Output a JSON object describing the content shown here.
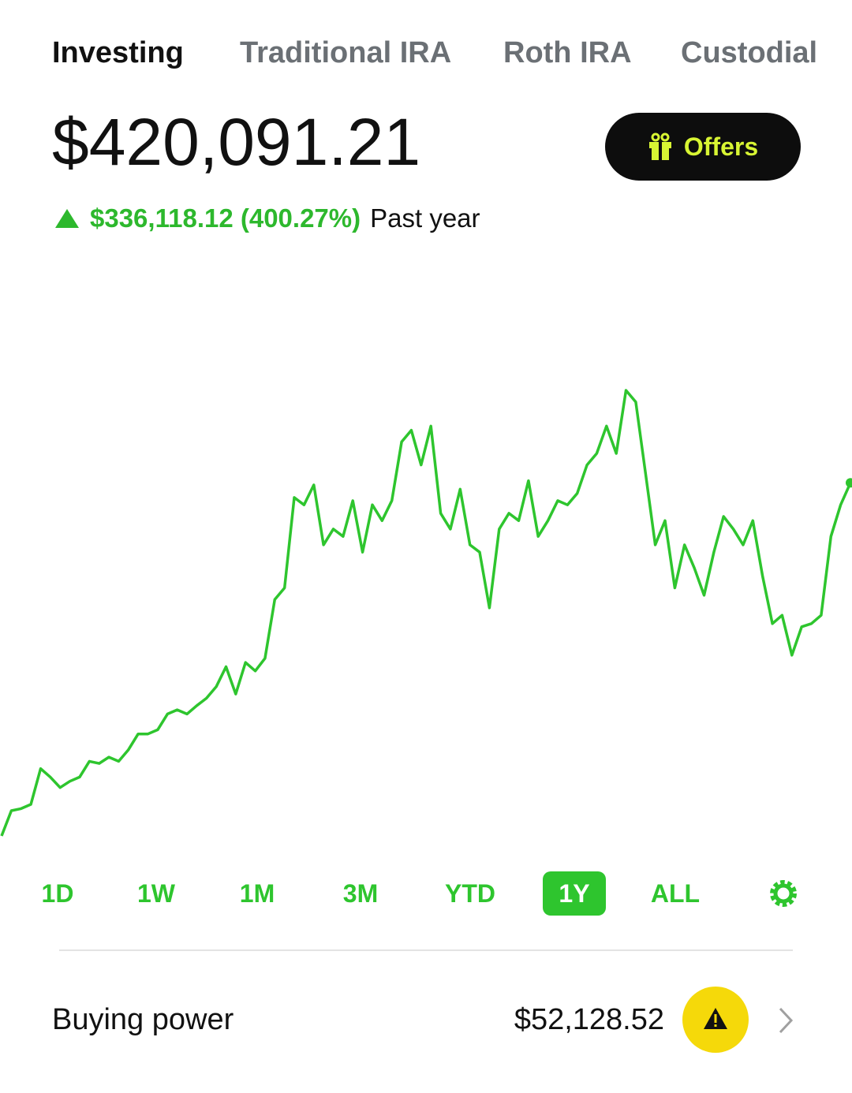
{
  "tabs": [
    "Investing",
    "Traditional IRA",
    "Roth IRA",
    "Custodial"
  ],
  "active_tab": 0,
  "balance": "$420,091.21",
  "offers": "Offers",
  "change": {
    "amount": "$336,118.12 (400.27%)",
    "period": "Past year"
  },
  "chart_data": {
    "type": "line",
    "color": "#2ec52e",
    "values": [
      84000,
      108000,
      110000,
      114000,
      148000,
      140000,
      130000,
      136000,
      140000,
      155000,
      153000,
      159000,
      155000,
      166000,
      181000,
      181000,
      185000,
      200000,
      204000,
      200000,
      208000,
      215000,
      226000,
      245000,
      219000,
      249000,
      241000,
      253000,
      309000,
      320000,
      406000,
      399000,
      418000,
      361000,
      376000,
      369000,
      403000,
      354000,
      399000,
      384000,
      403000,
      459000,
      470000,
      437000,
      474000,
      391000,
      376000,
      414000,
      361000,
      354000,
      301000,
      376000,
      391000,
      384000,
      422000,
      369000,
      384000,
      403000,
      399000,
      410000,
      437000,
      448000,
      474000,
      448000,
      508000,
      497000,
      429000,
      361000,
      384000,
      320000,
      361000,
      339000,
      313000,
      354000,
      388000,
      376000,
      361000,
      384000,
      331000,
      286000,
      294000,
      256000,
      283000,
      286000,
      294000,
      369000,
      399000,
      420000
    ]
  },
  "timeframes": [
    "1D",
    "1W",
    "1M",
    "3M",
    "YTD",
    "1Y",
    "ALL"
  ],
  "active_timeframe": 5,
  "buying_power": {
    "label": "Buying power",
    "value": "$52,128.52"
  }
}
